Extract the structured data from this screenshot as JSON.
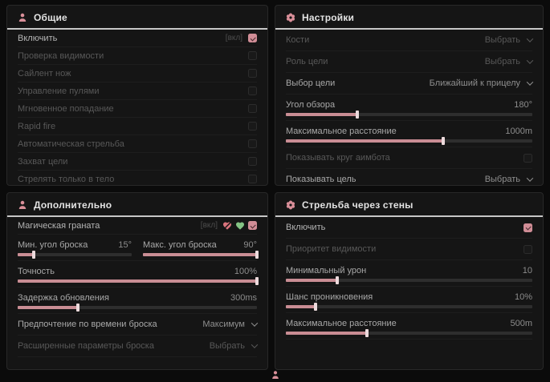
{
  "colors": {
    "accent": "#d08d96",
    "slider_fill": "#c98d94",
    "panel_bg": "#151515"
  },
  "panels": {
    "general": {
      "title": "Общие",
      "rows": {
        "enable": {
          "label": "Включить",
          "state": "[вкл]",
          "checked": true
        },
        "vis_check": {
          "label": "Проверка видимости",
          "checked": false
        },
        "silent_knife": {
          "label": "Сайлент нож",
          "checked": false
        },
        "bullet_control": {
          "label": "Управление пулями",
          "checked": false
        },
        "instant_hit": {
          "label": "Мгновенное попадание",
          "checked": false
        },
        "rapid_fire": {
          "label": "Rapid fire",
          "checked": false
        },
        "auto_shoot": {
          "label": "Автоматическая стрельба",
          "checked": false
        },
        "target_lock": {
          "label": "Захват цели",
          "checked": false
        },
        "body_only": {
          "label": "Стрелять только в тело",
          "checked": false
        }
      }
    },
    "settings": {
      "title": "Настройки",
      "rows": {
        "bones": {
          "label": "Кости",
          "value": "Выбрать"
        },
        "target_role": {
          "label": "Роль цели",
          "value": "Выбрать"
        },
        "target_select": {
          "label": "Выбор цели",
          "value": "Ближайший к прицелу"
        },
        "fov": {
          "label": "Угол обзора",
          "value": "180°",
          "pct": 29
        },
        "max_distance": {
          "label": "Максимальное расстояние",
          "value": "1000m",
          "pct": 64
        },
        "show_circle": {
          "label": "Показывать круг аимбота",
          "checked": false
        },
        "show_target": {
          "label": "Показывать цель",
          "value": "Выбрать"
        }
      }
    },
    "additional": {
      "title": "Дополнительно",
      "rows": {
        "magic_grenade": {
          "label": "Магическая граната",
          "state": "[вкл]",
          "checked": true
        },
        "min_angle": {
          "label": "Мин. угол броска",
          "value": "15°",
          "pct": 14
        },
        "max_angle": {
          "label": "Макс. угол броска",
          "value": "90°",
          "pct": 100
        },
        "accuracy": {
          "label": "Точность",
          "value": "100%",
          "pct": 100
        },
        "update_delay": {
          "label": "Задержка обновления",
          "value": "300ms",
          "pct": 25
        },
        "throw_time": {
          "label": "Предпочтение по времени броска",
          "value": "Максимум"
        },
        "advanced_throw": {
          "label": "Расширенные параметры броска",
          "value": "Выбрать"
        }
      }
    },
    "wallbang": {
      "title": "Стрельба через стены",
      "rows": {
        "enable": {
          "label": "Включить",
          "checked": true
        },
        "vis_priority": {
          "label": "Приоритет видимости",
          "checked": false
        },
        "min_damage": {
          "label": "Минимальный урон",
          "value": "10",
          "pct": 21
        },
        "penetration": {
          "label": "Шанс проникновения",
          "value": "10%",
          "pct": 12
        },
        "max_distance": {
          "label": "Максимальное расстояние",
          "value": "500m",
          "pct": 33
        }
      }
    }
  }
}
